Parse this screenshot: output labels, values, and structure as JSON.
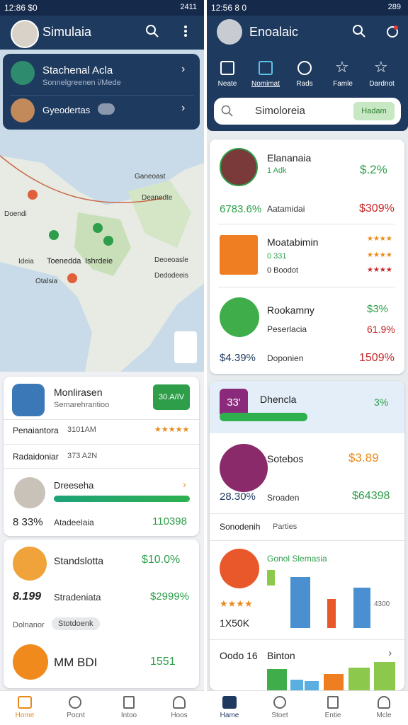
{
  "left": {
    "status": {
      "time": "12:86 $0",
      "battery": "2411"
    },
    "app_bar": {
      "title": "Simulaia"
    },
    "overlay": {
      "title": "Stachenal Acla",
      "subtitle": "Sonnelgreenen i/Mede",
      "second": "Gyeodertas"
    },
    "map_labels": [
      "Ganeoast",
      "Deanedte",
      "Doendi",
      "Deoeoasle",
      "Ideia",
      "Toenedda",
      "Ishrdeie",
      "Dedodeeis",
      "Otalsia"
    ],
    "summary": {
      "title": "Monlirasen",
      "subtitle": "Semarehrantioo",
      "button": "30.A/IV"
    },
    "rows": [
      [
        "Penaiantora",
        "3101AM"
      ],
      [
        "Radaidoniar",
        "373 A2N"
      ]
    ],
    "progress": {
      "name": "Dreeseha",
      "percent": "8 33%",
      "label": "Atadeelaia",
      "value": "110398"
    },
    "person": {
      "name": "Standslotta",
      "value": "$10.0%",
      "number": "8.199",
      "label": "Stradeniata",
      "change": "$2999%"
    },
    "chips": {
      "label": "Dolnanor",
      "chip": "Stotdoenk"
    },
    "last": {
      "name": "MM BDI",
      "value": "1551"
    },
    "nav": [
      "Home",
      "Pocnt",
      "Intoo",
      "Hoos"
    ]
  },
  "right": {
    "status": {
      "time": "12:56 8 0",
      "battery": "289"
    },
    "app_bar": {
      "title": "Enoalaic"
    },
    "tabs": [
      "Neate",
      "Nomimat",
      "Rads",
      "Famle",
      "Dardnot"
    ],
    "search": {
      "placeholder": "Simoloreia",
      "button": "Hadam"
    },
    "list": [
      {
        "name": "Elananaia",
        "sub": "1 Adk",
        "value": "$.2%",
        "left": "6783.6%",
        "label": "Aatamidai",
        "right": "$309%"
      },
      {
        "name": "Moatabimin",
        "sub": "0 331",
        "detail": "0 Boodot"
      },
      {
        "name": "Rookamny",
        "sub": "Peserlacia",
        "value": "$3%",
        "change": "61.9%",
        "left": "$4.39%",
        "label": "Doponien",
        "right": "1509%"
      }
    ],
    "feature": {
      "badge": "33'",
      "title": "Dhencla",
      "value": "3%"
    },
    "stats": {
      "name": "Sotebos",
      "value": "$3.89",
      "left": "28.30%",
      "label": "Sroaden",
      "right": "$64398"
    },
    "section": {
      "label": "Sonodenih",
      "chip": "Parties"
    },
    "chart_card": {
      "title": "Gonol Slemasia",
      "total": "1X50K",
      "axis": "4300"
    },
    "footer_card": {
      "left": "Oodo 16",
      "title": "Binton"
    },
    "nav": [
      "Hame",
      "Stoet",
      "Entie",
      "Mcle"
    ]
  }
}
